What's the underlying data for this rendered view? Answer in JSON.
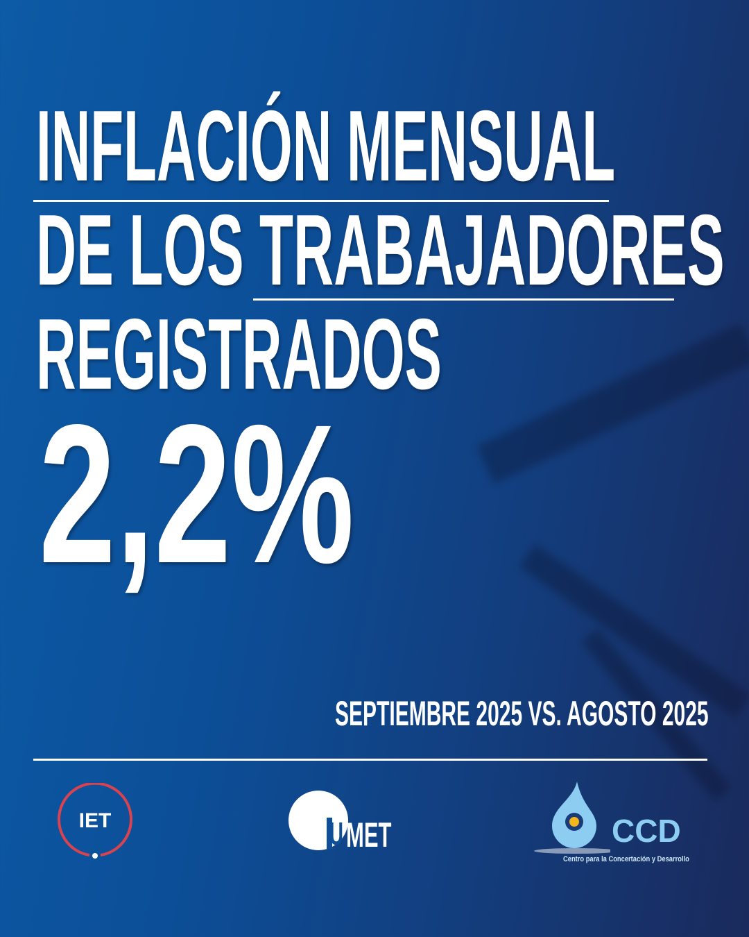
{
  "title": {
    "line1": "INFLACIÓN MENSUAL",
    "line2a": "DE LOS ",
    "line2b": "TRABAJADORES",
    "line3": "REGISTRADOS"
  },
  "value": "2,2%",
  "period": "SEPTIEMBRE 2025 VS. AGOSTO 2025",
  "logos": {
    "iet": "IET",
    "umet": "MET",
    "umet_u": "U",
    "ccd": "CCD",
    "ccd_subtitle": "Centro para la Concertación y Desarrollo"
  },
  "colors": {
    "iet_ring": "#d8434f",
    "ccd_blue": "#8ecdf2",
    "ccd_dot": "#f2b51c"
  }
}
